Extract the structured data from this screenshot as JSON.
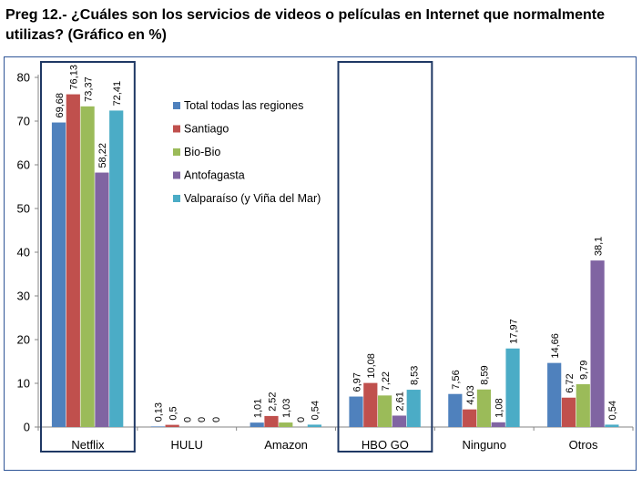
{
  "title": "Preg 12.- ¿Cuáles son los servicios de videos o películas en Internet que normalmente utilizas? (Gráfico en %)",
  "chart_data": {
    "type": "bar",
    "title": "Preg 12.- ¿Cuáles son los servicios de videos o películas en Internet que normalmente utilizas? (Gráfico en %)",
    "xlabel": "",
    "ylabel": "",
    "ylim": [
      0,
      80
    ],
    "yticks": [
      0,
      10,
      20,
      30,
      40,
      50,
      60,
      70,
      80
    ],
    "grid": false,
    "legend_position": "inside-top-center",
    "highlighted_categories": [
      "Netflix",
      "HBO GO"
    ],
    "categories": [
      "Netflix",
      "HULU",
      "Amazon",
      "HBO GO",
      "Ninguno",
      "Otros"
    ],
    "series": [
      {
        "name": "Total todas las regiones",
        "color": "#4f81bd",
        "values": [
          69.68,
          0.13,
          1.01,
          6.97,
          7.56,
          14.66
        ],
        "labels": [
          "69,68",
          "0,13",
          "1,01",
          "6,97",
          "7,56",
          "14,66"
        ]
      },
      {
        "name": "Santiago",
        "color": "#c0504d",
        "values": [
          76.13,
          0.5,
          2.52,
          10.08,
          4.03,
          6.72
        ],
        "labels": [
          "76,13",
          "0,5",
          "2,52",
          "10,08",
          "4,03",
          "6,72"
        ]
      },
      {
        "name": "Bio-Bio",
        "color": "#9bbb59",
        "values": [
          73.37,
          0,
          1.03,
          7.22,
          8.59,
          9.79
        ],
        "labels": [
          "73,37",
          "0",
          "1,03",
          "7,22",
          "8,59",
          "9,79"
        ]
      },
      {
        "name": "Antofagasta",
        "color": "#8064a2",
        "values": [
          58.22,
          0,
          0,
          2.61,
          1.08,
          38.1
        ],
        "labels": [
          "58,22",
          "0",
          "0",
          "2,61",
          "1,08",
          "38,1"
        ]
      },
      {
        "name": "Valparaíso (y Viña del Mar)",
        "color": "#4bacc6",
        "values": [
          72.41,
          0,
          0.54,
          8.53,
          17.97,
          0.54
        ],
        "labels": [
          "72,41",
          "0",
          "0,54",
          "8,53",
          "17,97",
          "0,54"
        ]
      }
    ]
  }
}
